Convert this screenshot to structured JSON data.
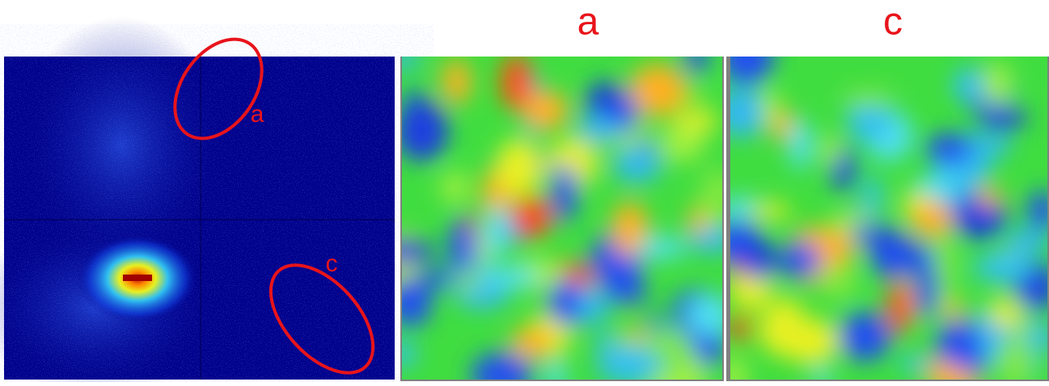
{
  "fft_panel": {
    "labels": [
      "a",
      "c"
    ]
  },
  "panels": [
    {
      "title": "a"
    },
    {
      "title": "c"
    }
  ]
}
